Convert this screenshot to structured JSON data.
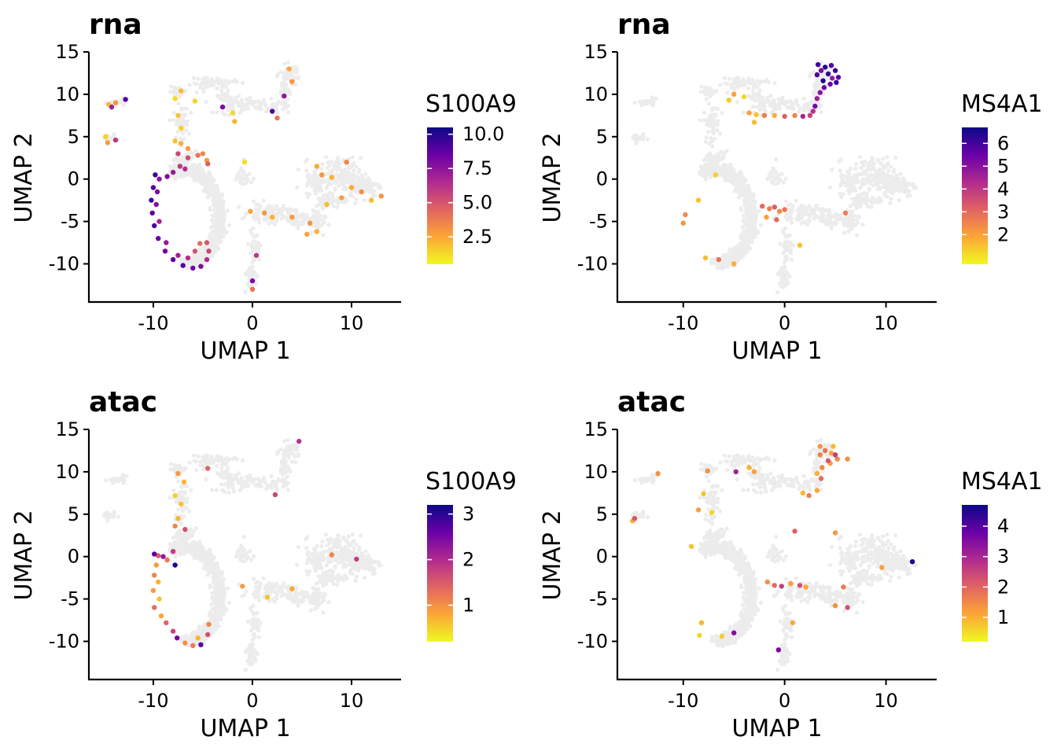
{
  "colors": {
    "background_cells": "#ececec",
    "gradient": [
      "#f0f921",
      "#fca636",
      "#e16462",
      "#b12a90",
      "#6a00a8",
      "#0d0887"
    ]
  },
  "chart_data": [
    {
      "type": "scatter",
      "title": "rna",
      "xlabel": "UMAP 1",
      "ylabel": "UMAP 2",
      "xlim": [
        -16.5,
        15
      ],
      "ylim": [
        -14.5,
        15
      ],
      "xticks": [
        -10,
        0,
        10
      ],
      "yticks": [
        15,
        10,
        5,
        0,
        -5,
        -10
      ],
      "legend": {
        "title": "S100A9",
        "position": "right",
        "min": 0.5,
        "max": 10.5,
        "ticks": [
          10.0,
          7.5,
          5.0,
          2.5
        ]
      },
      "expression_points": [
        [
          -9.8,
          0.5,
          9.5
        ],
        [
          -10,
          -1,
          9
        ],
        [
          -10.2,
          -2.5,
          9.2
        ],
        [
          -10.1,
          -4,
          8.8
        ],
        [
          -9.9,
          -5.5,
          9.1
        ],
        [
          -9.5,
          -7,
          8.5
        ],
        [
          -8.8,
          -8.5,
          8.2
        ],
        [
          -8,
          -9.5,
          8.7
        ],
        [
          -7,
          -10.2,
          9
        ],
        [
          -6,
          -10.5,
          8.4
        ],
        [
          -5.2,
          -10.3,
          7.9
        ],
        [
          -4.6,
          -9.5,
          6.5
        ],
        [
          -4.4,
          -8.5,
          5.5
        ],
        [
          -4.6,
          -7.5,
          5
        ],
        [
          -9.4,
          0,
          7.5
        ],
        [
          -9.6,
          -1.5,
          8
        ],
        [
          -9.7,
          -3,
          7.8
        ],
        [
          -9.4,
          -5,
          6.8
        ],
        [
          -8.7,
          -7.5,
          7.2
        ],
        [
          -7.5,
          -9,
          6.9
        ],
        [
          -6.5,
          -9.3,
          6.3
        ],
        [
          -5.8,
          -8.5,
          5.1
        ],
        [
          -5.3,
          -7.6,
          4.2
        ],
        [
          -8.6,
          0.3,
          8
        ],
        [
          -8,
          0.8,
          7.2
        ],
        [
          -7.3,
          1.5,
          6
        ],
        [
          -6.5,
          2.5,
          5.2
        ],
        [
          -5.5,
          2.8,
          4
        ],
        [
          -5,
          3,
          3.5
        ],
        [
          -4.6,
          2.2,
          3
        ],
        [
          -6.5,
          3.6,
          2.8
        ],
        [
          -7.2,
          4.2,
          2.2
        ],
        [
          -7.8,
          4.5,
          1.8
        ],
        [
          -7.5,
          3,
          5.5
        ],
        [
          -6.8,
          1.2,
          6.4
        ],
        [
          -4.5,
          1.8,
          4.6
        ],
        [
          -7.2,
          6,
          1.5
        ],
        [
          -7.5,
          7.5,
          1.8
        ],
        [
          -7.8,
          9.5,
          1.2
        ],
        [
          -7.2,
          10.4,
          2
        ],
        [
          -5.8,
          9.2,
          1.4
        ],
        [
          -3,
          8.5,
          8
        ],
        [
          -2,
          7.8,
          1.3
        ],
        [
          -1.8,
          6.8,
          2.2
        ],
        [
          -14.2,
          8.5,
          7
        ],
        [
          -14.5,
          8.8,
          2
        ],
        [
          -13.8,
          9,
          3
        ],
        [
          -12.8,
          9.4,
          9
        ],
        [
          -14.8,
          5,
          1.5
        ],
        [
          -14.6,
          4.3,
          2.8
        ],
        [
          -13.8,
          4.6,
          6
        ],
        [
          -0.8,
          2,
          1.2
        ],
        [
          3.7,
          13,
          2.5
        ],
        [
          4,
          11.5,
          3
        ],
        [
          3.2,
          9.8,
          7.5
        ],
        [
          2,
          8,
          9
        ],
        [
          2.5,
          7.2,
          4
        ],
        [
          6.5,
          1.5,
          2.4
        ],
        [
          7,
          0.5,
          3
        ],
        [
          8,
          0.2,
          2.2
        ],
        [
          9.5,
          2,
          3.5
        ],
        [
          10,
          -1,
          2.4
        ],
        [
          9,
          -2.2,
          2.8
        ],
        [
          11,
          -1.5,
          3.2
        ],
        [
          12,
          -2.5,
          2
        ],
        [
          13,
          -2,
          3
        ],
        [
          7.5,
          -3,
          2
        ],
        [
          5.8,
          -5.2,
          3
        ],
        [
          5.5,
          -6.5,
          2.6
        ],
        [
          6.5,
          -6.2,
          2.2
        ],
        [
          4,
          -4.5,
          2.8
        ],
        [
          2,
          -4.5,
          2.2
        ],
        [
          1.2,
          -4,
          3
        ],
        [
          -0.2,
          -3.8,
          2.6
        ],
        [
          0.4,
          -9,
          6
        ],
        [
          0,
          -12,
          8
        ],
        [
          0,
          -13,
          4
        ]
      ]
    },
    {
      "type": "scatter",
      "title": "rna",
      "xlabel": "UMAP 1",
      "ylabel": "UMAP 2",
      "xlim": [
        -16.5,
        15
      ],
      "ylim": [
        -14.5,
        15
      ],
      "xticks": [
        -10,
        0,
        10
      ],
      "yticks": [
        15,
        10,
        5,
        0,
        -5,
        -10
      ],
      "legend": {
        "title": "MS4A1",
        "position": "right",
        "min": 0.7,
        "max": 6.7,
        "ticks": [
          6,
          5,
          4,
          3,
          2
        ]
      },
      "expression_points": [
        [
          3.3,
          13.5,
          6
        ],
        [
          4,
          13.2,
          6.4
        ],
        [
          4.6,
          13.4,
          5.8
        ],
        [
          5,
          12.8,
          6.2
        ],
        [
          5.3,
          12,
          5.7
        ],
        [
          5.1,
          11.4,
          6.1
        ],
        [
          4.5,
          11.2,
          5.5
        ],
        [
          3.8,
          11.6,
          6.5
        ],
        [
          3.2,
          12.3,
          5.9
        ],
        [
          3.6,
          12.8,
          5.2
        ],
        [
          4.3,
          12.4,
          6.3
        ],
        [
          4.7,
          11.9,
          4.8
        ],
        [
          3.9,
          10.8,
          5.5
        ],
        [
          3.5,
          10.2,
          5
        ],
        [
          3.2,
          9.5,
          4.6
        ],
        [
          3,
          8.6,
          5.3
        ],
        [
          2.8,
          8,
          4.2
        ],
        [
          2.5,
          7.5,
          3.8
        ],
        [
          1.8,
          7.4,
          4.5
        ],
        [
          1,
          7.5,
          2.5
        ],
        [
          0,
          7.4,
          3.2
        ],
        [
          -1,
          7.5,
          1.8
        ],
        [
          -2,
          7.5,
          2.6
        ],
        [
          -2.8,
          7.6,
          1.5
        ],
        [
          -3.5,
          7.8,
          2
        ],
        [
          -3,
          6.7,
          1.6
        ],
        [
          -4,
          9.7,
          1.2
        ],
        [
          -5,
          10,
          2
        ],
        [
          -5.5,
          9.3,
          1.4
        ],
        [
          -6.8,
          0.5,
          1.3
        ],
        [
          -9.8,
          -4.2,
          2.4
        ],
        [
          -8.5,
          -2.5,
          1.5
        ],
        [
          -7.8,
          -9.3,
          1.6
        ],
        [
          -6.5,
          -9.5,
          2.8
        ],
        [
          -5,
          -10,
          1.8
        ],
        [
          -2.2,
          -3.2,
          3
        ],
        [
          -1.5,
          -3.5,
          2.6
        ],
        [
          -1,
          -3.3,
          3.2
        ],
        [
          -0.5,
          -3.8,
          2.4
        ],
        [
          0,
          -3.6,
          2.8
        ],
        [
          -1.8,
          -4.5,
          2
        ],
        [
          -0.8,
          -4.8,
          3
        ],
        [
          6,
          -4,
          2.6
        ],
        [
          1.5,
          -7.8,
          1.5
        ],
        [
          -10,
          -5.2,
          2.2
        ]
      ]
    },
    {
      "type": "scatter",
      "title": "atac",
      "xlabel": "UMAP 1",
      "ylabel": "UMAP 2",
      "xlim": [
        -16.5,
        15
      ],
      "ylim": [
        -14.5,
        15
      ],
      "xticks": [
        -10,
        0,
        10
      ],
      "yticks": [
        15,
        10,
        5,
        0,
        -5,
        -10
      ],
      "legend": {
        "title": "S100A9",
        "position": "right",
        "min": 0.2,
        "max": 3.2,
        "ticks": [
          3,
          2,
          1
        ]
      },
      "expression_points": [
        [
          -9.9,
          0.3,
          2.7
        ],
        [
          -9.5,
          0.1,
          1.5
        ],
        [
          -9,
          0,
          2.2
        ],
        [
          -8.6,
          -0.4,
          1.2
        ],
        [
          -8,
          0.6,
          1.8
        ],
        [
          -7.8,
          -1,
          3.1
        ],
        [
          -9.7,
          -1,
          0.9
        ],
        [
          -9.9,
          -2.2,
          1.1
        ],
        [
          -9.5,
          -3,
          0.7
        ],
        [
          -10,
          -4,
          0.9
        ],
        [
          -9.4,
          -5,
          0.6
        ],
        [
          -9.9,
          -6,
          1.3
        ],
        [
          -9.2,
          -7,
          0.8
        ],
        [
          -8.7,
          -7.8,
          1.4
        ],
        [
          -8,
          -8.8,
          1.7
        ],
        [
          -7.6,
          -9.6,
          2.5
        ],
        [
          -6.8,
          -10.2,
          1
        ],
        [
          -6,
          -10.5,
          1.2
        ],
        [
          -5.2,
          -10.4,
          2.7
        ],
        [
          -4.5,
          -9.2,
          1.6
        ],
        [
          -4.4,
          -8,
          1.1
        ],
        [
          -5.5,
          -9.6,
          0.7
        ],
        [
          -7.5,
          4.5,
          0.7
        ],
        [
          -7.8,
          3.6,
          1.1
        ],
        [
          -6.8,
          3.2,
          1.6
        ],
        [
          -7.2,
          6.2,
          0.6
        ],
        [
          -7.5,
          9.8,
          0.9
        ],
        [
          -7.8,
          7.2,
          0.5
        ],
        [
          -6.9,
          8.8,
          0.7
        ],
        [
          -4.5,
          10.4,
          1.4
        ],
        [
          4.7,
          13.6,
          1.9
        ],
        [
          2.3,
          7.3,
          1.7
        ],
        [
          8,
          0.2,
          1.1
        ],
        [
          10.5,
          -0.3,
          1.8
        ],
        [
          4,
          -3.8,
          0.8
        ],
        [
          1.5,
          -4.8,
          0.6
        ],
        [
          -1,
          -3.5,
          0.9
        ]
      ]
    },
    {
      "type": "scatter",
      "title": "atac",
      "xlabel": "UMAP 1",
      "ylabel": "UMAP 2",
      "xlim": [
        -16.5,
        15
      ],
      "ylim": [
        -14.5,
        15
      ],
      "xticks": [
        -10,
        0,
        10
      ],
      "yticks": [
        15,
        10,
        5,
        0,
        -5,
        -10
      ],
      "legend": {
        "title": "MS4A1",
        "position": "right",
        "min": 0.2,
        "max": 4.7,
        "ticks": [
          4,
          3,
          2,
          1
        ]
      },
      "expression_points": [
        [
          3.5,
          13,
          1.3
        ],
        [
          4,
          12.5,
          1.8
        ],
        [
          4.6,
          12.2,
          1.1
        ],
        [
          5,
          12,
          2.6
        ],
        [
          5.2,
          11.5,
          1.5
        ],
        [
          4.3,
          11.3,
          2.2
        ],
        [
          3.5,
          12,
          1.6
        ],
        [
          4.8,
          13,
          0.9
        ],
        [
          4.5,
          11,
          1.2
        ],
        [
          3.7,
          10.5,
          1.5
        ],
        [
          3.2,
          9.8,
          1
        ],
        [
          3.6,
          9.2,
          1.9
        ],
        [
          3.2,
          7.8,
          1.1
        ],
        [
          2.4,
          7.2,
          1.6
        ],
        [
          1.8,
          7.5,
          0.9
        ],
        [
          6.2,
          11.5,
          1.4
        ],
        [
          -3.5,
          10.5,
          1
        ],
        [
          -4.8,
          10,
          3.1
        ],
        [
          -3,
          10,
          1.2
        ],
        [
          -7.6,
          10.1,
          1.4
        ],
        [
          -8,
          7.4,
          0.8
        ],
        [
          -8.5,
          5.5,
          1.2
        ],
        [
          -7.2,
          5.2,
          0.6
        ],
        [
          -14.8,
          4.5,
          2.2
        ],
        [
          -15,
          4.2,
          1
        ],
        [
          -12.5,
          9.8,
          1.4
        ],
        [
          -9.2,
          1.2,
          0.8
        ],
        [
          -8.2,
          -7.8,
          0.9
        ],
        [
          -5,
          -9,
          3.5
        ],
        [
          -6.2,
          -9.4,
          0.7
        ],
        [
          -8.4,
          -9.3,
          0.6
        ],
        [
          1,
          3,
          2.1
        ],
        [
          5,
          2.8,
          1.3
        ],
        [
          -1.7,
          -3,
          1.4
        ],
        [
          -1,
          -3.4,
          1.9
        ],
        [
          -0.3,
          -3.5,
          2.6
        ],
        [
          0.6,
          -3.2,
          1.2
        ],
        [
          1.5,
          -3.4,
          2.3
        ],
        [
          2.1,
          -3.6,
          1.1
        ],
        [
          5.8,
          -3.6,
          1.7
        ],
        [
          6.2,
          -6,
          2.3
        ],
        [
          5,
          -5.8,
          1.4
        ],
        [
          0.8,
          -7.8,
          1.1
        ],
        [
          -0.6,
          -11,
          3.6
        ],
        [
          9.6,
          -1.3,
          1.2
        ],
        [
          12.6,
          -0.6,
          4.6
        ]
      ]
    }
  ]
}
